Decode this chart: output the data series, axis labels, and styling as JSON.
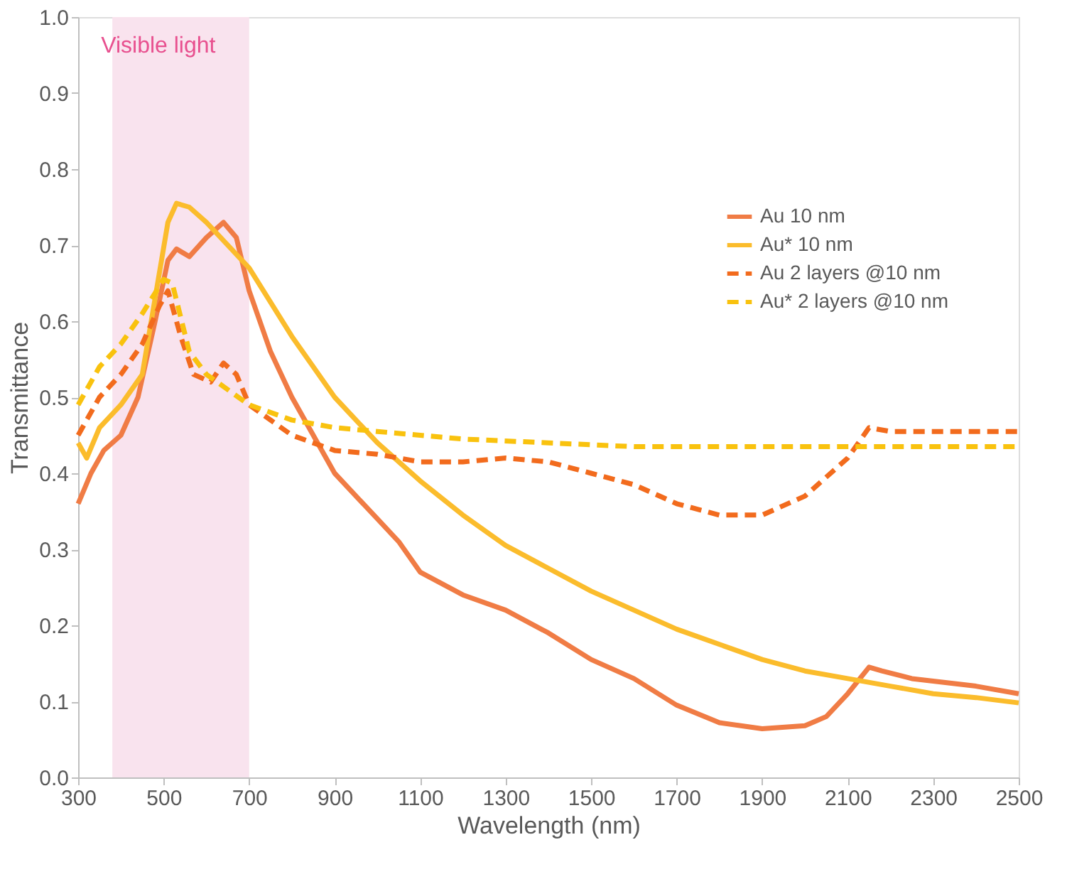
{
  "chart_data": {
    "type": "line",
    "xlabel": "Wavelength (nm)",
    "ylabel": "Transmittance",
    "xlim": [
      300,
      2500
    ],
    "xticks": [
      300,
      500,
      700,
      900,
      1100,
      1300,
      1500,
      1700,
      1900,
      2100,
      2300,
      2500
    ],
    "ylim": [
      0,
      1.0
    ],
    "yticks": [
      {
        "value": 0,
        "label": "0.0"
      },
      0.1,
      0.2,
      0.3,
      0.4,
      0.5,
      0.6,
      0.7,
      0.8,
      0.9,
      {
        "value": 1.0,
        "label": "1.0"
      }
    ],
    "grid": false,
    "legend": "right",
    "marker": "none",
    "bands": [
      {
        "axis": "x",
        "from": 380,
        "to": 700,
        "label": "Visible light",
        "color": "#f9e3ee"
      }
    ],
    "series": [
      {
        "name": "Au 10 nm",
        "color": "#f07c45",
        "line_style": "solid",
        "x": [
          300,
          330,
          360,
          400,
          440,
          480,
          510,
          530,
          560,
          600,
          640,
          670,
          700,
          750,
          800,
          900,
          1000,
          1050,
          1100,
          1200,
          1300,
          1400,
          1500,
          1600,
          1700,
          1800,
          1900,
          2000,
          2050,
          2100,
          2150,
          2180,
          2250,
          2400,
          2500
        ],
        "values": [
          0.36,
          0.4,
          0.43,
          0.45,
          0.5,
          0.6,
          0.68,
          0.695,
          0.685,
          0.71,
          0.73,
          0.71,
          0.64,
          0.56,
          0.5,
          0.4,
          0.34,
          0.31,
          0.27,
          0.24,
          0.22,
          0.19,
          0.155,
          0.13,
          0.095,
          0.072,
          0.064,
          0.068,
          0.08,
          0.11,
          0.145,
          0.14,
          0.13,
          0.12,
          0.11
        ]
      },
      {
        "name": "Au* 10 nm",
        "color": "#fbbc2c",
        "line_style": "solid",
        "x": [
          300,
          320,
          350,
          400,
          450,
          480,
          510,
          530,
          560,
          600,
          700,
          800,
          900,
          1000,
          1100,
          1200,
          1300,
          1400,
          1500,
          1600,
          1700,
          1800,
          1900,
          2000,
          2100,
          2200,
          2300,
          2400,
          2500
        ],
        "values": [
          0.44,
          0.42,
          0.46,
          0.49,
          0.53,
          0.63,
          0.73,
          0.755,
          0.75,
          0.73,
          0.67,
          0.58,
          0.5,
          0.44,
          0.39,
          0.345,
          0.305,
          0.275,
          0.245,
          0.22,
          0.195,
          0.175,
          0.155,
          0.14,
          0.13,
          0.12,
          0.11,
          0.105,
          0.098
        ]
      },
      {
        "name": "Au 2 layers @10 nm",
        "color": "#f26b1d",
        "line_style": "dashed",
        "x": [
          300,
          350,
          400,
          450,
          490,
          510,
          540,
          570,
          610,
          640,
          670,
          700,
          800,
          900,
          1000,
          1100,
          1200,
          1300,
          1400,
          1500,
          1600,
          1700,
          1800,
          1900,
          2000,
          2100,
          2150,
          2200,
          2300,
          2500
        ],
        "values": [
          0.45,
          0.5,
          0.53,
          0.57,
          0.62,
          0.64,
          0.58,
          0.53,
          0.52,
          0.545,
          0.53,
          0.49,
          0.45,
          0.43,
          0.425,
          0.415,
          0.415,
          0.42,
          0.415,
          0.4,
          0.385,
          0.36,
          0.345,
          0.345,
          0.37,
          0.42,
          0.46,
          0.455,
          0.455,
          0.455
        ]
      },
      {
        "name": "Au* 2 layers @10 nm",
        "color": "#f9c20e",
        "line_style": "dashed",
        "x": [
          300,
          350,
          400,
          450,
          500,
          520,
          560,
          600,
          700,
          800,
          900,
          1000,
          1200,
          1400,
          1600,
          1800,
          2000,
          2200,
          2500
        ],
        "values": [
          0.49,
          0.54,
          0.57,
          0.61,
          0.655,
          0.65,
          0.56,
          0.53,
          0.49,
          0.47,
          0.46,
          0.455,
          0.445,
          0.44,
          0.435,
          0.435,
          0.435,
          0.435,
          0.435
        ]
      }
    ]
  }
}
